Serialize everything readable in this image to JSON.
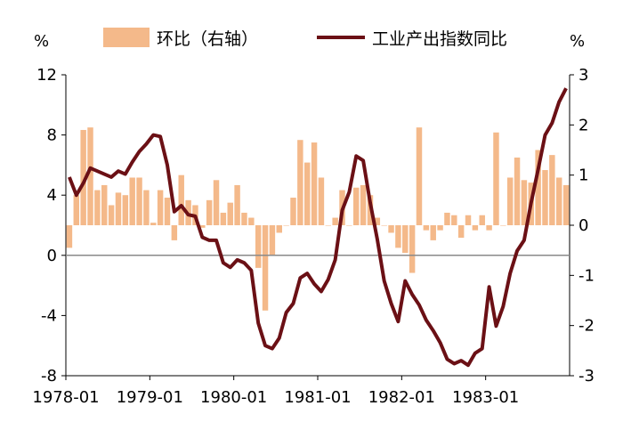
{
  "chart_data": {
    "type": "bar+line",
    "title": "",
    "left_axis": {
      "unit_label": "%",
      "range": [
        -8,
        12
      ],
      "ticks": [
        -8,
        -4,
        0,
        4,
        8,
        12
      ],
      "tick_labels": [
        "-8",
        "-4",
        "0",
        "4",
        "8",
        "12"
      ]
    },
    "right_axis": {
      "unit_label": "%",
      "range": [
        -3,
        3
      ],
      "ticks": [
        -3,
        -2,
        -1,
        0,
        1,
        2,
        3
      ],
      "tick_labels": [
        "-3",
        "-2",
        "-1",
        "0",
        "1",
        "2",
        "3"
      ]
    },
    "x_axis": {
      "tick_labels": [
        "1978-01",
        "1979-01",
        "1980-01",
        "1981-01",
        "1982-01",
        "1983-01"
      ]
    },
    "months": [
      "1978-01",
      "1978-02",
      "1978-03",
      "1978-04",
      "1978-05",
      "1978-06",
      "1978-07",
      "1978-08",
      "1978-09",
      "1978-10",
      "1978-11",
      "1978-12",
      "1979-01",
      "1979-02",
      "1979-03",
      "1979-04",
      "1979-05",
      "1979-06",
      "1979-07",
      "1979-08",
      "1979-09",
      "1979-10",
      "1979-11",
      "1979-12",
      "1980-01",
      "1980-02",
      "1980-03",
      "1980-04",
      "1980-05",
      "1980-06",
      "1980-07",
      "1980-08",
      "1980-09",
      "1980-10",
      "1980-11",
      "1980-12",
      "1981-01",
      "1981-02",
      "1981-03",
      "1981-04",
      "1981-05",
      "1981-06",
      "1981-07",
      "1981-08",
      "1981-09",
      "1981-10",
      "1981-11",
      "1981-12",
      "1982-01",
      "1982-02",
      "1982-03",
      "1982-04",
      "1982-05",
      "1982-06",
      "1982-07",
      "1982-08",
      "1982-09",
      "1982-10",
      "1982-11",
      "1982-12",
      "1983-01",
      "1983-02",
      "1983-03",
      "1983-04",
      "1983-05",
      "1983-06",
      "1983-07",
      "1983-08",
      "1983-09",
      "1983-10",
      "1983-11",
      "1983-12"
    ],
    "series": [
      {
        "name": "环比（右轴）",
        "kind": "bar",
        "axis": "right",
        "color": "#f4b98a",
        "values": [
          -0.45,
          0.6,
          1.9,
          1.95,
          0.7,
          0.8,
          0.4,
          0.65,
          0.6,
          0.95,
          0.95,
          0.7,
          0.05,
          0.7,
          0.55,
          -0.3,
          1.0,
          0.5,
          0.4,
          -0.05,
          0.5,
          0.9,
          0.25,
          0.45,
          0.8,
          0.25,
          0.15,
          -0.85,
          -1.7,
          -0.6,
          -0.15,
          0.0,
          0.55,
          1.7,
          1.25,
          1.65,
          0.95,
          0.0,
          0.15,
          0.7,
          0.0,
          0.75,
          0.8,
          0.6,
          0.15,
          0.0,
          -0.15,
          -0.45,
          -0.55,
          -0.95,
          1.95,
          -0.1,
          -0.3,
          -0.1,
          0.25,
          0.2,
          -0.25,
          0.2,
          -0.1,
          0.2,
          -0.1,
          1.85,
          0.0,
          0.95,
          1.35,
          0.9,
          0.85,
          1.5,
          1.1,
          1.4,
          0.95,
          0.8
        ]
      },
      {
        "name": "工业产出指数同比",
        "kind": "line",
        "axis": "left",
        "color": "#6b1015",
        "values": [
          5.2,
          4.0,
          4.8,
          5.8,
          5.6,
          5.4,
          5.2,
          5.6,
          5.4,
          6.2,
          6.9,
          7.4,
          8.0,
          7.9,
          6.0,
          2.9,
          3.3,
          2.7,
          2.6,
          1.2,
          1.0,
          1.0,
          -0.5,
          -0.8,
          -0.3,
          -0.5,
          -1.0,
          -4.5,
          -6.0,
          -6.2,
          -5.5,
          -3.8,
          -3.2,
          -1.5,
          -1.2,
          -1.9,
          -2.4,
          -1.6,
          -0.3,
          3.0,
          4.2,
          6.6,
          6.3,
          3.5,
          1.1,
          -1.7,
          -3.2,
          -4.4,
          -1.7,
          -2.6,
          -3.3,
          -4.3,
          -5.0,
          -5.8,
          -6.9,
          -7.2,
          -7.0,
          -7.3,
          -6.5,
          -6.2,
          -2.1,
          -4.7,
          -3.4,
          -1.2,
          0.3,
          1.0,
          3.5,
          5.7,
          8.0,
          8.8,
          10.2,
          11.1
        ]
      }
    ],
    "legend": {
      "placement": "top"
    },
    "grid": false
  }
}
